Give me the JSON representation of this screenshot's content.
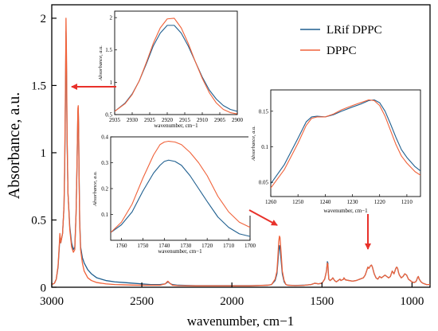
{
  "chart_data": {
    "type": "line",
    "xlabel": "wavenumber, cm−1",
    "ylabel": "Absorbance, a.u.",
    "xlim": [
      3000,
      900
    ],
    "ylim": [
      0,
      2.1
    ],
    "x_reversed": true,
    "xticks": [
      3000,
      2500,
      2000,
      1500,
      1000
    ],
    "yticks": [
      0,
      0.5,
      1,
      1.5,
      2
    ],
    "ytick_labels": [
      "0",
      "0.5",
      "1",
      "1.5",
      "2"
    ],
    "legend": {
      "placement": "top-right"
    },
    "colors": {
      "LRif DPPC": "#1f5f8f",
      "DPPC": "#f0623a"
    },
    "series": [
      {
        "name": "LRif DPPC",
        "color": "#1f5f8f",
        "x": [
          3000,
          2985,
          2975,
          2965,
          2958,
          2955,
          2950,
          2940,
          2932,
          2928,
          2924,
          2921,
          2918,
          2915,
          2910,
          2900,
          2890,
          2880,
          2872,
          2865,
          2860,
          2855,
          2853,
          2851,
          2848,
          2845,
          2840,
          2830,
          2820,
          2800,
          2780,
          2750,
          2700,
          2650,
          2600,
          2550,
          2500,
          2450,
          2400,
          2370,
          2360,
          2355,
          2345,
          2340,
          2330,
          2300,
          2200,
          2100,
          2000,
          1900,
          1800,
          1780,
          1760,
          1750,
          1745,
          1740,
          1736,
          1733,
          1728,
          1720,
          1710,
          1700,
          1690,
          1650,
          1600,
          1560,
          1540,
          1520,
          1500,
          1485,
          1475,
          1470,
          1467,
          1465,
          1462,
          1455,
          1445,
          1440,
          1430,
          1420,
          1410,
          1400,
          1395,
          1380,
          1378,
          1370,
          1350,
          1330,
          1310,
          1290,
          1270,
          1260,
          1250,
          1245,
          1240,
          1235,
          1230,
          1225,
          1220,
          1210,
          1200,
          1190,
          1180,
          1170,
          1160,
          1150,
          1140,
          1130,
          1120,
          1110,
          1100,
          1090,
          1085,
          1080,
          1075,
          1070,
          1060,
          1050,
          1040,
          1030,
          1020,
          1010,
          1000,
          990,
          980,
          975,
          970,
          965,
          960,
          950,
          940,
          930,
          920,
          910,
          900
        ],
        "y": [
          0.02,
          0.03,
          0.06,
          0.15,
          0.3,
          0.38,
          0.33,
          0.4,
          0.6,
          0.9,
          1.4,
          1.9,
          1.6,
          1.1,
          0.7,
          0.45,
          0.33,
          0.28,
          0.3,
          0.55,
          0.9,
          1.3,
          1.33,
          1.2,
          0.8,
          0.5,
          0.3,
          0.22,
          0.18,
          0.13,
          0.1,
          0.07,
          0.05,
          0.04,
          0.035,
          0.03,
          0.025,
          0.02,
          0.02,
          0.025,
          0.035,
          0.04,
          0.03,
          0.025,
          0.02,
          0.015,
          0.012,
          0.012,
          0.012,
          0.012,
          0.015,
          0.02,
          0.05,
          0.1,
          0.18,
          0.27,
          0.31,
          0.3,
          0.22,
          0.1,
          0.04,
          0.02,
          0.015,
          0.013,
          0.015,
          0.02,
          0.03,
          0.025,
          0.03,
          0.06,
          0.12,
          0.19,
          0.18,
          0.12,
          0.06,
          0.05,
          0.06,
          0.07,
          0.05,
          0.04,
          0.05,
          0.06,
          0.05,
          0.06,
          0.07,
          0.055,
          0.05,
          0.045,
          0.05,
          0.06,
          0.07,
          0.09,
          0.13,
          0.15,
          0.14,
          0.15,
          0.16,
          0.165,
          0.15,
          0.1,
          0.07,
          0.06,
          0.08,
          0.07,
          0.08,
          0.09,
          0.08,
          0.07,
          0.08,
          0.12,
          0.1,
          0.14,
          0.15,
          0.14,
          0.11,
          0.09,
          0.07,
          0.08,
          0.1,
          0.09,
          0.06,
          0.05,
          0.04,
          0.035,
          0.04,
          0.05,
          0.07,
          0.08,
          0.06,
          0.04,
          0.03,
          0.025,
          0.02,
          0.02,
          0.02
        ]
      },
      {
        "name": "DPPC",
        "color": "#f0623a",
        "x": [
          3000,
          2985,
          2975,
          2965,
          2958,
          2955,
          2950,
          2940,
          2932,
          2928,
          2924,
          2921,
          2918,
          2915,
          2910,
          2900,
          2890,
          2880,
          2872,
          2865,
          2860,
          2855,
          2853,
          2851,
          2848,
          2845,
          2840,
          2830,
          2820,
          2800,
          2780,
          2750,
          2700,
          2650,
          2600,
          2550,
          2500,
          2450,
          2400,
          2370,
          2360,
          2355,
          2345,
          2340,
          2330,
          2300,
          2200,
          2100,
          2000,
          1900,
          1800,
          1780,
          1760,
          1750,
          1745,
          1740,
          1736,
          1733,
          1728,
          1720,
          1710,
          1700,
          1690,
          1650,
          1600,
          1560,
          1540,
          1520,
          1500,
          1485,
          1475,
          1470,
          1467,
          1465,
          1462,
          1455,
          1445,
          1440,
          1430,
          1420,
          1410,
          1400,
          1395,
          1380,
          1378,
          1370,
          1350,
          1330,
          1310,
          1290,
          1270,
          1260,
          1250,
          1245,
          1240,
          1235,
          1230,
          1225,
          1220,
          1210,
          1200,
          1190,
          1180,
          1170,
          1160,
          1150,
          1140,
          1130,
          1120,
          1110,
          1100,
          1090,
          1085,
          1080,
          1075,
          1070,
          1060,
          1050,
          1040,
          1030,
          1020,
          1010,
          1000,
          990,
          980,
          975,
          970,
          965,
          960,
          950,
          940,
          930,
          920,
          910,
          900
        ],
        "y": [
          0.02,
          0.03,
          0.06,
          0.16,
          0.32,
          0.4,
          0.33,
          0.4,
          0.6,
          0.95,
          1.5,
          2.0,
          1.7,
          1.15,
          0.7,
          0.43,
          0.3,
          0.26,
          0.28,
          0.55,
          0.9,
          1.33,
          1.35,
          1.2,
          0.8,
          0.48,
          0.28,
          0.18,
          0.12,
          0.07,
          0.05,
          0.035,
          0.025,
          0.02,
          0.018,
          0.016,
          0.015,
          0.015,
          0.015,
          0.025,
          0.04,
          0.045,
          0.03,
          0.025,
          0.015,
          0.012,
          0.01,
          0.01,
          0.01,
          0.01,
          0.015,
          0.02,
          0.06,
          0.12,
          0.22,
          0.34,
          0.38,
          0.37,
          0.28,
          0.12,
          0.05,
          0.02,
          0.015,
          0.012,
          0.014,
          0.02,
          0.03,
          0.025,
          0.03,
          0.06,
          0.12,
          0.18,
          0.17,
          0.11,
          0.06,
          0.05,
          0.06,
          0.07,
          0.05,
          0.04,
          0.05,
          0.06,
          0.05,
          0.06,
          0.07,
          0.055,
          0.05,
          0.045,
          0.05,
          0.06,
          0.07,
          0.09,
          0.13,
          0.15,
          0.14,
          0.15,
          0.16,
          0.165,
          0.15,
          0.1,
          0.07,
          0.06,
          0.08,
          0.07,
          0.08,
          0.09,
          0.08,
          0.07,
          0.08,
          0.12,
          0.1,
          0.14,
          0.15,
          0.14,
          0.11,
          0.09,
          0.07,
          0.08,
          0.1,
          0.09,
          0.06,
          0.05,
          0.04,
          0.035,
          0.04,
          0.05,
          0.07,
          0.08,
          0.06,
          0.04,
          0.03,
          0.025,
          0.02,
          0.02,
          0.02
        ]
      }
    ],
    "insets": [
      {
        "name": "inset-ch-stretch",
        "xlim": [
          2935,
          2900
        ],
        "ylim": [
          0.5,
          2.1
        ],
        "xlabel": "wavenumber, cm−1",
        "ylabel": "Absorbance, a.u.",
        "xticks": [
          2935,
          2930,
          2925,
          2920,
          2915,
          2910,
          2905,
          2900
        ],
        "yticks": [
          0.5,
          1,
          1.5,
          2
        ],
        "ytick_labels": [
          "0.5",
          "1",
          "1.5",
          "2"
        ],
        "series": [
          {
            "name": "LRif DPPC",
            "x": [
              2935,
              2932,
              2930,
              2928,
              2926,
              2924,
              2922,
              2920,
              2918,
              2916,
              2914,
              2912,
              2910,
              2908,
              2906,
              2904,
              2902,
              2900
            ],
            "y": [
              0.55,
              0.68,
              0.82,
              1.02,
              1.28,
              1.56,
              1.76,
              1.88,
              1.88,
              1.76,
              1.56,
              1.32,
              1.08,
              0.88,
              0.74,
              0.64,
              0.58,
              0.55
            ]
          },
          {
            "name": "DPPC",
            "x": [
              2935,
              2932,
              2930,
              2928,
              2926,
              2924,
              2922,
              2920,
              2918,
              2916,
              2914,
              2912,
              2910,
              2908,
              2906,
              2904,
              2902,
              2900
            ],
            "y": [
              0.55,
              0.67,
              0.81,
              1.02,
              1.3,
              1.6,
              1.84,
              1.98,
              1.99,
              1.84,
              1.6,
              1.32,
              1.06,
              0.84,
              0.68,
              0.58,
              0.53,
              0.51
            ]
          }
        ]
      },
      {
        "name": "inset-carbonyl",
        "xlim": [
          1765,
          1700
        ],
        "ylim": [
          0.0,
          0.4
        ],
        "xlabel": "wavenumber, cm−1",
        "ylabel": "Absorbance, a.u.",
        "xticks": [
          1760,
          1750,
          1740,
          1730,
          1720,
          1710,
          1700
        ],
        "yticks": [
          0.1,
          0.2,
          0.3,
          0.4
        ],
        "ytick_labels": [
          "0.1",
          "0.2",
          "0.3",
          "0.4"
        ],
        "series": [
          {
            "name": "LRif DPPC",
            "x": [
              1765,
              1760,
              1755,
              1750,
              1745,
              1742,
              1740,
              1738,
              1735,
              1732,
              1728,
              1724,
              1720,
              1715,
              1710,
              1705,
              1700
            ],
            "y": [
              0.03,
              0.06,
              0.11,
              0.19,
              0.26,
              0.29,
              0.305,
              0.31,
              0.305,
              0.29,
              0.25,
              0.2,
              0.15,
              0.09,
              0.05,
              0.025,
              0.015
            ]
          },
          {
            "name": "DPPC",
            "x": [
              1765,
              1760,
              1755,
              1750,
              1745,
              1742,
              1740,
              1738,
              1735,
              1732,
              1728,
              1724,
              1720,
              1715,
              1710,
              1705,
              1700
            ],
            "y": [
              0.03,
              0.07,
              0.14,
              0.24,
              0.33,
              0.37,
              0.38,
              0.383,
              0.38,
              0.37,
              0.34,
              0.3,
              0.25,
              0.17,
              0.11,
              0.07,
              0.05
            ]
          }
        ]
      },
      {
        "name": "inset-phosphate",
        "xlim": [
          1260,
          1205
        ],
        "ylim": [
          0.03,
          0.18
        ],
        "xlabel": "wavenumber, cm−1",
        "ylabel": "Absorbance, a.u.",
        "xticks": [
          1260,
          1250,
          1240,
          1230,
          1220,
          1210
        ],
        "yticks": [
          0.05,
          0.1,
          0.15
        ],
        "ytick_labels": [
          "0.05",
          "0.1",
          "0.15"
        ],
        "series": [
          {
            "name": "LRif DPPC",
            "x": [
              1260,
              1255,
              1250,
              1247,
              1245,
              1243,
              1240,
              1237,
              1234,
              1230,
              1227,
              1224,
              1222,
              1220,
              1218,
              1216,
              1214,
              1212,
              1210,
              1207,
              1205
            ],
            "y": [
              0.048,
              0.075,
              0.112,
              0.135,
              0.142,
              0.143,
              0.142,
              0.145,
              0.15,
              0.156,
              0.16,
              0.165,
              0.166,
              0.162,
              0.15,
              0.132,
              0.113,
              0.096,
              0.085,
              0.072,
              0.066
            ]
          },
          {
            "name": "DPPC",
            "x": [
              1260,
              1255,
              1250,
              1247,
              1245,
              1243,
              1240,
              1237,
              1234,
              1230,
              1227,
              1224,
              1222,
              1220,
              1218,
              1216,
              1214,
              1212,
              1210,
              1207,
              1205
            ],
            "y": [
              0.042,
              0.068,
              0.105,
              0.13,
              0.14,
              0.142,
              0.142,
              0.146,
              0.152,
              0.158,
              0.162,
              0.166,
              0.165,
              0.158,
              0.143,
              0.123,
              0.103,
              0.087,
              0.077,
              0.065,
              0.06
            ]
          }
        ]
      }
    ]
  }
}
